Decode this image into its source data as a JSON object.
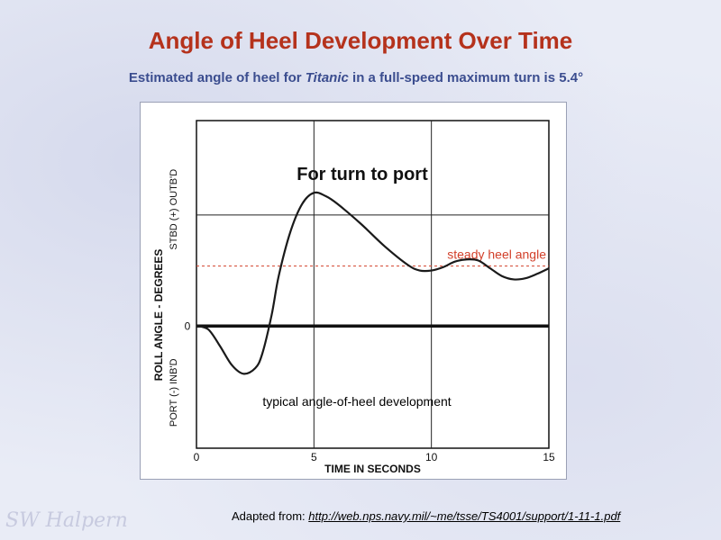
{
  "slide": {
    "title": "Angle of Heel Development Over Time",
    "subtitle_pre": "Estimated angle of heel for ",
    "subtitle_em": "Titanic",
    "subtitle_post": " in a full-speed maximum turn is 5.4°",
    "credit_label": "Adapted from: ",
    "credit_url": "http://web.nps.navy.mil/~me/tsse/TS4001/support/1-11-1.pdf",
    "signature": "SW Halpern"
  },
  "colors": {
    "title": "#b5321c",
    "subtitle": "#3b4d8f",
    "steady_line": "#d2402a",
    "curve": "#1a1a1a"
  },
  "chart_data": {
    "type": "line",
    "title": "For turn to port",
    "xlabel": "TIME IN SECONDS",
    "ylabel": "ROLL ANGLE - DEGREES",
    "ylabel_top": "STBD (+) OUTB'D",
    "ylabel_bottom": "PORT (-) INB'D",
    "y_zero_label": "0",
    "xlim": [
      0,
      15
    ],
    "ylim": [
      -1.1,
      1.85
    ],
    "xticks": [
      0,
      5,
      10,
      15
    ],
    "grid": true,
    "series": [
      {
        "name": "typical angle-of-heel development",
        "x": [
          0,
          0.5,
          1,
          1.5,
          2,
          2.5,
          2.8,
          3.2,
          3.5,
          4,
          4.5,
          5,
          5.5,
          6,
          7,
          8,
          9,
          9.5,
          10,
          10.5,
          11,
          11.5,
          12,
          12.5,
          13,
          13.5,
          14,
          14.5,
          15
        ],
        "y": [
          0,
          -0.03,
          -0.18,
          -0.35,
          -0.43,
          -0.38,
          -0.25,
          0.1,
          0.45,
          0.85,
          1.1,
          1.2,
          1.17,
          1.1,
          0.92,
          0.72,
          0.55,
          0.5,
          0.5,
          0.53,
          0.58,
          0.6,
          0.59,
          0.52,
          0.45,
          0.42,
          0.43,
          0.47,
          0.52
        ]
      }
    ],
    "steady_heel": {
      "label": "steady heel angle",
      "y": 0.54
    },
    "annotation": "typical angle-of-heel development"
  }
}
